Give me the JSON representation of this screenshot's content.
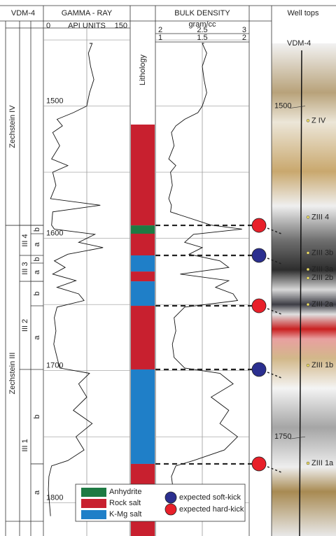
{
  "header": {
    "well": "VDM-4",
    "gamma_ray": "GAMMA - RAY",
    "bulk_density": "BULK DENSITY",
    "well_tops": "Well tops"
  },
  "gamma_scale": {
    "min": 0,
    "unit": "API UNITS",
    "max": 150
  },
  "density_scale": {
    "unit": "gram/cc",
    "top": [
      2,
      2.5,
      3
    ],
    "bottom": [
      1,
      1.5,
      2
    ]
  },
  "depth": {
    "range": [
      1441,
      1825
    ],
    "grid": [
      1450,
      1500,
      1550,
      1600,
      1650,
      1700,
      1750,
      1800
    ],
    "labels": [
      1500,
      1600,
      1700,
      1800
    ]
  },
  "logs": {
    "depth": [
      1441,
      1450,
      1460,
      1470,
      1480,
      1490,
      1500,
      1505,
      1510,
      1515,
      1520,
      1530,
      1540,
      1545,
      1550,
      1560,
      1570,
      1575,
      1580,
      1590,
      1593,
      1597,
      1603,
      1607,
      1612,
      1617,
      1622,
      1627,
      1632,
      1637,
      1642,
      1647,
      1652,
      1660,
      1670,
      1680,
      1690,
      1698,
      1702,
      1710,
      1720,
      1730,
      1740,
      1750,
      1760,
      1768,
      1772,
      1780,
      1790,
      1800,
      1810
    ],
    "gamma_ray": [
      80,
      85,
      78,
      82,
      88,
      80,
      75,
      50,
      20,
      30,
      12,
      25,
      10,
      40,
      12,
      18,
      8,
      100,
      12,
      10,
      15,
      90,
      60,
      105,
      40,
      15,
      35,
      12,
      55,
      20,
      60,
      70,
      20,
      15,
      18,
      14,
      20,
      25,
      80,
      60,
      75,
      50,
      85,
      55,
      70,
      40,
      10,
      5,
      4,
      6,
      8
    ],
    "bulk_density": [
      2.52,
      2.5,
      2.55,
      2.5,
      2.52,
      2.55,
      2.5,
      2.45,
      2.3,
      2.2,
      2.15,
      2.18,
      2.12,
      2.2,
      2.14,
      2.16,
      2.12,
      2.15,
      2.14,
      2.6,
      2.95,
      2.4,
      2.3,
      2.5,
      2.35,
      2.7,
      2.8,
      2.25,
      2.8,
      2.65,
      2.85,
      2.9,
      2.3,
      2.18,
      2.2,
      2.16,
      2.18,
      2.3,
      2.7,
      2.85,
      2.6,
      2.8,
      2.7,
      2.9,
      2.75,
      2.4,
      2.2,
      2.15,
      2.17,
      2.15,
      2.16
    ]
  },
  "lithology": {
    "title": "Lithology",
    "intervals": [
      {
        "top": 1514,
        "base": 1590.2,
        "lith": "Rock salt"
      },
      {
        "top": 1590.2,
        "base": 1596.5,
        "lith": "Anhydrite"
      },
      {
        "top": 1596.5,
        "base": 1612.9,
        "lith": "Rock salt"
      },
      {
        "top": 1612.9,
        "base": 1625.1,
        "lith": "K-Mg salt"
      },
      {
        "top": 1625.1,
        "base": 1632.5,
        "lith": "Rock salt"
      },
      {
        "top": 1632.5,
        "base": 1651,
        "lith": "K-Mg salt"
      },
      {
        "top": 1651,
        "base": 1699.1,
        "lith": "Rock salt"
      },
      {
        "top": 1699.1,
        "base": 1770.5,
        "lith": "K-Mg salt"
      },
      {
        "top": 1770.5,
        "base": 1825,
        "lith": "Rock salt"
      }
    ]
  },
  "kicks": [
    {
      "depth": 1590.2,
      "kind": "expected hard-kick"
    },
    {
      "depth": 1612.9,
      "kind": "expected soft-kick"
    },
    {
      "depth": 1651,
      "kind": "expected hard-kick"
    },
    {
      "depth": 1699.1,
      "kind": "expected soft-kick"
    },
    {
      "depth": 1770.5,
      "kind": "expected hard-kick"
    }
  ],
  "stratigraphy": {
    "groups": [
      {
        "label": "Zechstein IV",
        "top": 1441,
        "base": 1590.2
      },
      {
        "label": "Zechstein III",
        "top": 1590.2,
        "base": 1825
      }
    ],
    "units": [
      {
        "label": "III 4",
        "top": 1590.2,
        "base": 1612.9
      },
      {
        "label": "III 3",
        "top": 1612.9,
        "base": 1632.5
      },
      {
        "label": "III 2",
        "top": 1632.5,
        "base": 1699.1
      },
      {
        "label": "III 1",
        "top": 1699.1,
        "base": 1825
      }
    ],
    "subunits": [
      {
        "label": "b",
        "top": 1590.2,
        "base": 1596.5
      },
      {
        "label": "a",
        "top": 1596.5,
        "base": 1612.9
      },
      {
        "label": "b",
        "top": 1612.9,
        "base": 1618.7
      },
      {
        "label": "a",
        "top": 1618.7,
        "base": 1632.5
      },
      {
        "label": "b",
        "top": 1632.5,
        "base": 1651
      },
      {
        "label": "a",
        "top": 1651,
        "base": 1699.1
      },
      {
        "label": "b",
        "top": 1699.1,
        "base": 1770.5
      },
      {
        "label": "a",
        "top": 1770.5,
        "base": 1825
      }
    ]
  },
  "well_tops_panel": {
    "well": "VDM-4",
    "depth_labels": [
      1500,
      1750
    ],
    "tops": [
      {
        "label": "Z IV",
        "depth": 1511
      },
      {
        "label": "ZIII 4",
        "depth": 1584
      },
      {
        "label": "ZIII 3b",
        "depth": 1611
      },
      {
        "label": "ZIII 3a",
        "depth": 1623.5
      },
      {
        "label": "ZIII 2b",
        "depth": 1630
      },
      {
        "label": "ZIII 2a",
        "depth": 1650
      },
      {
        "label": "ZIII 1b",
        "depth": 1696
      },
      {
        "label": "ZIII 1a",
        "depth": 1770
      }
    ]
  },
  "legend": {
    "lithology": [
      {
        "label": "Anhydrite",
        "color": "#1e7a43"
      },
      {
        "label": "Rock salt",
        "color": "#c8202f"
      },
      {
        "label": "K-Mg salt",
        "color": "#1f7fc8"
      }
    ],
    "kicks": [
      {
        "label": "expected soft-kick",
        "color": "#2b2f8f"
      },
      {
        "label": "expected hard-kick",
        "color": "#e8202a"
      }
    ]
  }
}
